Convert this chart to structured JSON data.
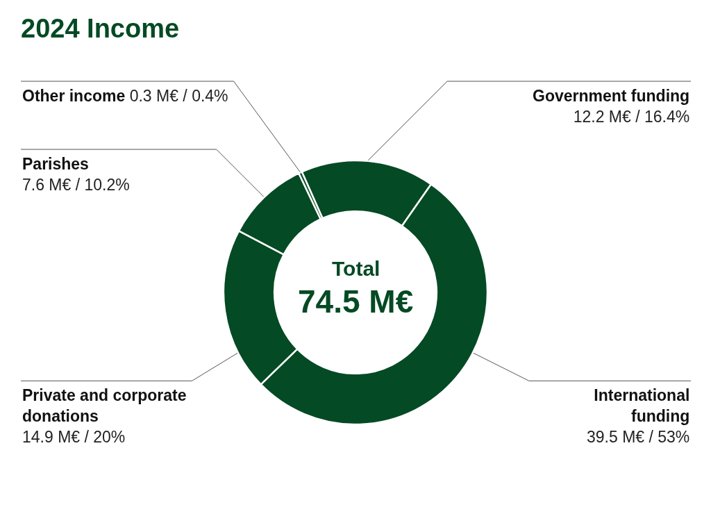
{
  "chart_data": {
    "type": "donut",
    "title": "2024 Income",
    "categories": [
      "Government funding",
      "International funding",
      "Private and corporate donations",
      "Parishes",
      "Other income"
    ],
    "values": [
      12.2,
      39.5,
      14.9,
      7.6,
      0.3
    ],
    "colors": [
      "#044a24",
      "#044a24",
      "#044a24",
      "#044a24",
      "#044a24"
    ],
    "value_labels": [
      "12.2 M€ / 16.4%",
      "39.5 M€ / 53%",
      "14.9 M€ / 20%",
      "7.6 M€ / 10.2%",
      "0.3 M€ / 0.4%"
    ],
    "annotations": [
      "Total",
      "74.5 M€"
    ]
  }
}
